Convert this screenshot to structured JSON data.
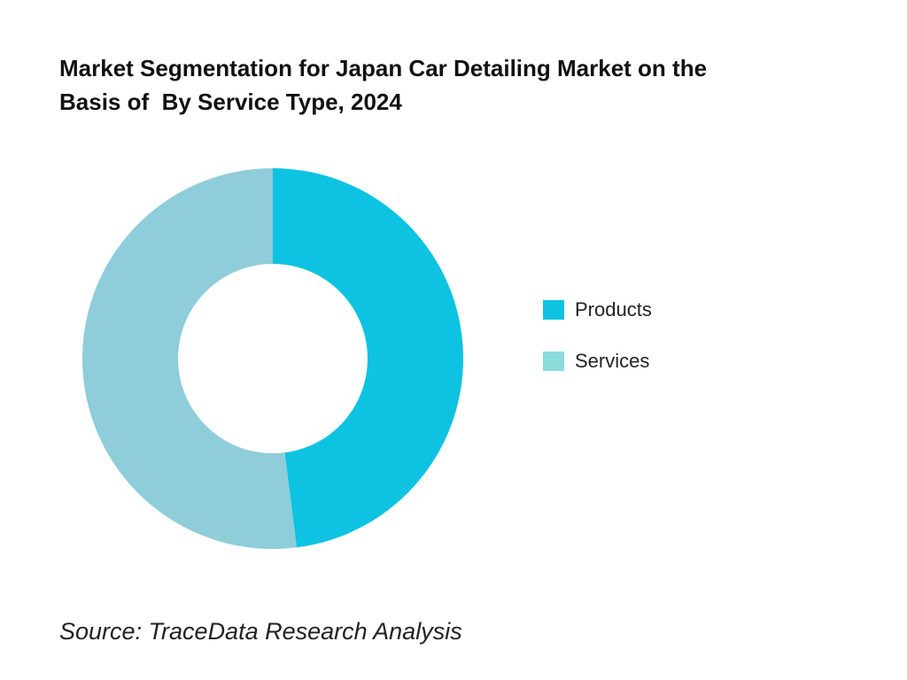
{
  "chart_data": {
    "type": "pie",
    "variant": "donut",
    "title": "Market Segmentation for Japan Car Detailing Market on the Basis of  By Service Type, 2024",
    "title_lines": [
      "Market Segmentation for Japan Car Detailing Market on the",
      "Basis of  By Service Type, 2024"
    ],
    "categories": [
      "Products",
      "Services"
    ],
    "values": [
      48,
      52
    ],
    "colors": [
      "#0DC3E1",
      "#8ECDD9"
    ],
    "legend_colors": [
      "#0DC3E1",
      "#8ADCDB"
    ],
    "legend_position": "right",
    "legend": [
      {
        "label": "Products",
        "color": "#0DC3E1"
      },
      {
        "label": "Services",
        "color": "#8ADCDB"
      }
    ]
  },
  "source": "Source: TraceData Research Analysis"
}
